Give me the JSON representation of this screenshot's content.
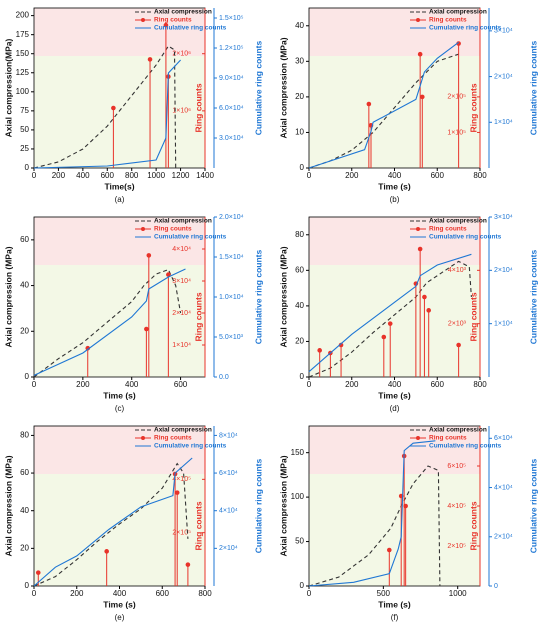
{
  "chart_data": [
    {
      "type": "line",
      "label": "(a)",
      "xlabel": "Time(s)",
      "ylabel": "Axial compression(MPa)",
      "y2label": "Cumulative ring counts",
      "y3label": "Ring counts",
      "xlim": [
        0,
        1400
      ],
      "xticks": [
        0,
        200,
        400,
        600,
        800,
        1000,
        1200,
        1400
      ],
      "ylim": [
        0,
        210
      ],
      "yticks": [
        0,
        25,
        50,
        75,
        100,
        125,
        150,
        175,
        200
      ],
      "y2lim": [
        0,
        160000
      ],
      "y2ticks": [
        {
          "value": 30000,
          "label": "3.0×10⁴"
        },
        {
          "value": 60000,
          "label": "6.0×10⁴"
        },
        {
          "value": 90000,
          "label": "9.0×10⁴"
        },
        {
          "value": 120000,
          "label": "1.2×10⁵"
        },
        {
          "value": 150000,
          "label": "1.5×10⁵"
        }
      ],
      "y3lim": [
        0,
        2800000
      ],
      "y3ticks": [
        {
          "value": 1000000,
          "label": "1×10⁶"
        },
        {
          "value": 2000000,
          "label": "2×10⁶"
        }
      ],
      "series": [
        {
          "name": "Axial compression",
          "color": "#333333",
          "style": "dashed",
          "x": [
            0,
            200,
            400,
            600,
            800,
            1000,
            1100,
            1150,
            1160
          ],
          "values": [
            0,
            8,
            25,
            55,
            95,
            135,
            160,
            155,
            0
          ]
        },
        {
          "name": "Ring counts",
          "color": "#e8332a",
          "style": "spike",
          "axis": "y3",
          "x": [
            650,
            950,
            1080,
            1100
          ],
          "values": [
            1050000,
            1900000,
            2500000,
            1600000
          ]
        },
        {
          "name": "Cumulative ring counts",
          "color": "#1f77d4",
          "style": "solid",
          "axis": "y2",
          "x": [
            0,
            600,
            1000,
            1080,
            1100,
            1200
          ],
          "values": [
            0,
            2000,
            8000,
            30000,
            95000,
            108000
          ]
        }
      ]
    },
    {
      "type": "line",
      "label": "(b)",
      "xlabel": "Time (s)",
      "ylabel": "Axial compression (MPa)",
      "y2label": "Cumulative ring counts",
      "y3label": "Ring counts",
      "xlim": [
        0,
        800
      ],
      "xticks": [
        0,
        200,
        400,
        600,
        800
      ],
      "ylim": [
        0,
        45
      ],
      "yticks": [
        0,
        10,
        20,
        30,
        40
      ],
      "y2lim": [
        0,
        35000
      ],
      "y2ticks": [
        {
          "value": 10000,
          "label": "1×10⁴"
        },
        {
          "value": 20000,
          "label": "2×10⁴"
        },
        {
          "value": 30000,
          "label": "3×10⁴"
        }
      ],
      "y3lim": [
        0,
        450000
      ],
      "y3ticks": [
        {
          "value": 100000,
          "label": "1×10⁵"
        },
        {
          "value": 200000,
          "label": "2×10⁵"
        }
      ],
      "series": [
        {
          "name": "Axial compression",
          "color": "#333333",
          "style": "dashed",
          "x": [
            0,
            100,
            200,
            300,
            400,
            500,
            600,
            700
          ],
          "values": [
            0,
            2,
            5,
            10,
            17,
            24,
            30,
            32
          ]
        },
        {
          "name": "Ring counts",
          "color": "#e8332a",
          "style": "spike",
          "axis": "y3",
          "x": [
            280,
            290,
            520,
            530,
            700
          ],
          "values": [
            180000,
            120000,
            320000,
            200000,
            350000
          ]
        },
        {
          "name": "Cumulative ring counts",
          "color": "#1f77d4",
          "style": "solid",
          "axis": "y2",
          "x": [
            0,
            260,
            290,
            300,
            500,
            520,
            540,
            600,
            700
          ],
          "values": [
            0,
            4000,
            8000,
            10000,
            15000,
            18000,
            21000,
            24000,
            27500
          ]
        }
      ]
    },
    {
      "type": "line",
      "label": "(c)",
      "xlabel": "Time (s)",
      "ylabel": "Axial compression (MPa)",
      "y2label": "Cumulative ring counts",
      "y3label": "Ring counts",
      "xlim": [
        0,
        700
      ],
      "xticks": [
        0,
        200,
        400,
        600
      ],
      "ylim": [
        0,
        70
      ],
      "yticks": [
        0,
        20,
        40,
        60
      ],
      "y2lim": [
        0,
        20000
      ],
      "y2ticks": [
        {
          "value": 0,
          "label": "0.0"
        },
        {
          "value": 5000,
          "label": "5.0×10³"
        },
        {
          "value": 10000,
          "label": "1.0×10⁴"
        },
        {
          "value": 15000,
          "label": "1.5×10⁴"
        },
        {
          "value": 20000,
          "label": "2.0×10⁴"
        }
      ],
      "y3lim": [
        0,
        50000
      ],
      "y3ticks": [
        {
          "value": 10000,
          "label": "1×10⁴"
        },
        {
          "value": 20000,
          "label": "2×10⁴"
        },
        {
          "value": 30000,
          "label": "3×10⁴"
        },
        {
          "value": 40000,
          "label": "4×10⁴"
        }
      ],
      "series": [
        {
          "name": "Axial compression",
          "color": "#333333",
          "style": "dashed",
          "x": [
            0,
            100,
            200,
            300,
            400,
            450,
            500,
            550,
            580,
            600
          ],
          "values": [
            0,
            8,
            15,
            24,
            33,
            40,
            45,
            47,
            40,
            28
          ]
        },
        {
          "name": "Ring counts",
          "color": "#e8332a",
          "style": "spike",
          "axis": "y3",
          "x": [
            220,
            460,
            470,
            550
          ],
          "values": [
            9000,
            15000,
            38000,
            32000
          ]
        },
        {
          "name": "Cumulative ring counts",
          "color": "#1f77d4",
          "style": "solid",
          "axis": "y2",
          "x": [
            0,
            200,
            400,
            460,
            470,
            550,
            620
          ],
          "values": [
            200,
            3000,
            7500,
            9500,
            11000,
            12500,
            13500
          ]
        }
      ]
    },
    {
      "type": "line",
      "label": "(d)",
      "xlabel": "Time (s)",
      "ylabel": "Axial compression (MPa)",
      "y2label": "Cumulative ring counts",
      "y3label": "Ring counts",
      "xlim": [
        0,
        800
      ],
      "xticks": [
        0,
        200,
        400,
        600,
        800
      ],
      "ylim": [
        0,
        90
      ],
      "yticks": [
        0,
        20,
        40,
        60,
        80
      ],
      "y2lim": [
        0,
        30000
      ],
      "y2ticks": [
        {
          "value": 10000,
          "label": "1×10⁴"
        },
        {
          "value": 20000,
          "label": "2×10⁴"
        },
        {
          "value": 30000,
          "label": "3×10⁴"
        }
      ],
      "y3lim": [
        0,
        6000
      ],
      "y3ticks": [
        {
          "value": 2000,
          "label": "2×10³"
        },
        {
          "value": 4000,
          "label": "4×10³"
        }
      ],
      "series": [
        {
          "name": "Axial compression",
          "color": "#333333",
          "style": "dashed",
          "x": [
            0,
            100,
            200,
            300,
            400,
            500,
            550,
            600,
            700,
            750,
            760
          ],
          "values": [
            0,
            5,
            14,
            25,
            35,
            45,
            53,
            57,
            65,
            62,
            45
          ]
        },
        {
          "name": "Ring counts",
          "color": "#e8332a",
          "style": "spike",
          "axis": "y3",
          "x": [
            50,
            100,
            150,
            350,
            380,
            500,
            520,
            540,
            560,
            700
          ],
          "values": [
            1000,
            900,
            1200,
            1500,
            2000,
            3500,
            4800,
            3000,
            2500,
            1200
          ]
        },
        {
          "name": "Cumulative ring counts",
          "color": "#1f77d4",
          "style": "solid",
          "axis": "y2",
          "x": [
            0,
            200,
            400,
            500,
            520,
            600,
            760
          ],
          "values": [
            1000,
            8000,
            14000,
            17000,
            19000,
            21000,
            23000
          ]
        }
      ]
    },
    {
      "type": "line",
      "label": "(e)",
      "xlabel": "Time (s)",
      "ylabel": "Axial compression (MPa)",
      "y2label": "Cumulative ring counts",
      "y3label": "Ring counts",
      "xlim": [
        0,
        800
      ],
      "xticks": [
        0,
        200,
        400,
        600,
        800
      ],
      "ylim": [
        0,
        85
      ],
      "yticks": [
        0,
        20,
        40,
        60,
        80
      ],
      "y2lim": [
        0,
        85000
      ],
      "y2ticks": [
        {
          "value": 20000,
          "label": "2×10⁴"
        },
        {
          "value": 40000,
          "label": "4×10⁴"
        },
        {
          "value": 60000,
          "label": "6×10⁴"
        },
        {
          "value": 80000,
          "label": "8×10⁴"
        }
      ],
      "y3lim": [
        0,
        600000
      ],
      "y3ticks": [
        {
          "value": 200000,
          "label": "2×10⁵"
        },
        {
          "value": 400000,
          "label": "4×10⁵"
        }
      ],
      "series": [
        {
          "name": "Axial compression",
          "color": "#333333",
          "style": "dashed",
          "x": [
            0,
            100,
            200,
            300,
            400,
            500,
            600,
            670,
            700,
            720
          ],
          "values": [
            0,
            5,
            14,
            24,
            33,
            41,
            52,
            65,
            60,
            25
          ]
        },
        {
          "name": "Ring counts",
          "color": "#e8332a",
          "style": "spike",
          "axis": "y3",
          "x": [
            20,
            340,
            660,
            670,
            720
          ],
          "values": [
            50000,
            130000,
            420000,
            350000,
            80000
          ]
        },
        {
          "name": "Cumulative ring counts",
          "color": "#1f77d4",
          "style": "solid",
          "axis": "y2",
          "x": [
            0,
            100,
            200,
            350,
            500,
            650,
            660,
            740
          ],
          "values": [
            0,
            10000,
            16000,
            30000,
            42000,
            48000,
            60000,
            68000
          ]
        }
      ]
    },
    {
      "type": "line",
      "label": "(f)",
      "xlabel": "Time (s)",
      "ylabel": "Axial compression (MPa)",
      "y2label": "Cumulative ring counts",
      "y3label": "Ring counts",
      "xlim": [
        0,
        1150
      ],
      "xticks": [
        0,
        500,
        1000
      ],
      "ylim": [
        0,
        180
      ],
      "yticks": [
        0,
        50,
        100,
        150
      ],
      "y2lim": [
        0,
        65000
      ],
      "y2ticks": [
        0,
        {
          "value": 20000,
          "label": "2×10⁴"
        },
        {
          "value": 40000,
          "label": "4×10⁴"
        },
        {
          "value": 60000,
          "label": "6×10⁴"
        }
      ],
      "y3lim": [
        0,
        800000
      ],
      "y3ticks": [
        {
          "value": 200000,
          "label": "2×10⁵"
        },
        {
          "value": 400000,
          "label": "4×10⁵"
        },
        {
          "value": 600000,
          "label": "6×10⁵"
        }
      ],
      "series": [
        {
          "name": "Axial compression",
          "color": "#333333",
          "style": "dashed",
          "x": [
            0,
            200,
            400,
            550,
            620,
            700,
            800,
            870,
            880
          ],
          "values": [
            0,
            10,
            35,
            65,
            90,
            115,
            135,
            130,
            0
          ]
        },
        {
          "name": "Ring counts",
          "color": "#e8332a",
          "style": "spike",
          "axis": "y3",
          "x": [
            540,
            620,
            640,
            650
          ],
          "values": [
            180000,
            450000,
            650000,
            400000
          ]
        },
        {
          "name": "Cumulative ring counts",
          "color": "#1f77d4",
          "style": "solid",
          "axis": "y2",
          "x": [
            0,
            300,
            540,
            600,
            620,
            640,
            700,
            850
          ],
          "values": [
            0,
            1500,
            5000,
            15000,
            20000,
            55000,
            58000,
            59000
          ]
        }
      ]
    }
  ]
}
